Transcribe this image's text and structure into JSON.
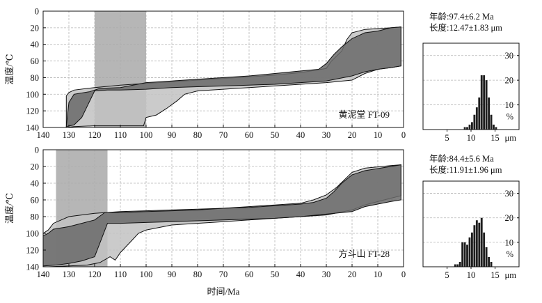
{
  "chart_data": [
    {
      "type": "area",
      "title": "",
      "label": "黄泥堂 FT-09",
      "xlabel": "",
      "ylabel": "温度/℃",
      "xlim": [
        140,
        0
      ],
      "ylim": [
        0,
        140
      ],
      "x_ticks": [
        140,
        130,
        120,
        110,
        100,
        90,
        80,
        70,
        60,
        50,
        40,
        30,
        20,
        10,
        0
      ],
      "y_ticks": [
        0,
        20,
        40,
        60,
        80,
        100,
        120,
        140
      ],
      "grid": true,
      "constraint_box": {
        "x": [
          120,
          100
        ],
        "y": [
          0,
          140
        ]
      },
      "acceptable_fit": {
        "upper": [
          [
            131,
            102
          ],
          [
            130,
            98
          ],
          [
            128,
            95
          ],
          [
            120,
            92
          ],
          [
            110,
            89
          ],
          [
            100,
            87
          ],
          [
            90,
            85
          ],
          [
            80,
            83
          ],
          [
            70,
            81
          ],
          [
            60,
            79
          ],
          [
            50,
            77
          ],
          [
            40,
            74
          ],
          [
            30,
            69
          ],
          [
            28,
            60
          ],
          [
            24,
            48
          ],
          [
            22,
            34
          ],
          [
            20,
            26
          ],
          [
            15,
            22
          ],
          [
            5,
            20
          ],
          [
            1,
            19
          ]
        ],
        "lower": [
          [
            1,
            66
          ],
          [
            5,
            68
          ],
          [
            10,
            70
          ],
          [
            15,
            75
          ],
          [
            20,
            83
          ],
          [
            30,
            86
          ],
          [
            40,
            88
          ],
          [
            50,
            90
          ],
          [
            60,
            92
          ],
          [
            70,
            94
          ],
          [
            80,
            96
          ],
          [
            85,
            100
          ],
          [
            88,
            108
          ],
          [
            92,
            117
          ],
          [
            96,
            125
          ],
          [
            100,
            128
          ],
          [
            101,
            138
          ],
          [
            110,
            138
          ],
          [
            120,
            138
          ],
          [
            128,
            139
          ],
          [
            131,
            140
          ]
        ]
      },
      "good_fit": {
        "upper": [
          [
            130,
            110
          ],
          [
            128,
            100
          ],
          [
            122,
            97
          ],
          [
            118,
            93
          ],
          [
            110,
            92
          ],
          [
            100,
            86
          ],
          [
            90,
            84
          ],
          [
            80,
            82
          ],
          [
            70,
            80
          ],
          [
            60,
            78
          ],
          [
            50,
            75
          ],
          [
            40,
            72
          ],
          [
            33,
            70
          ],
          [
            30,
            63
          ],
          [
            27,
            52
          ],
          [
            24,
            43
          ],
          [
            20,
            33
          ],
          [
            15,
            26
          ],
          [
            10,
            24
          ],
          [
            5,
            20
          ],
          [
            1,
            19
          ]
        ],
        "lower": [
          [
            1,
            66
          ],
          [
            5,
            68
          ],
          [
            10,
            70
          ],
          [
            15,
            73
          ],
          [
            20,
            78
          ],
          [
            30,
            84
          ],
          [
            40,
            86
          ],
          [
            50,
            88
          ],
          [
            60,
            89
          ],
          [
            70,
            90
          ],
          [
            80,
            91
          ],
          [
            90,
            92
          ],
          [
            100,
            94
          ],
          [
            110,
            95
          ],
          [
            115,
            95
          ],
          [
            120,
            96
          ],
          [
            125,
            128
          ],
          [
            128,
            137
          ],
          [
            131,
            139
          ]
        ]
      },
      "length_histogram": {
        "type": "bar",
        "age_text": "年龄:97.4±6.2 Ma",
        "length_text": "长度:12.47±1.83 μm",
        "x_ticks": [
          5,
          10,
          15
        ],
        "x_unit": "μm",
        "y_ticks": [
          10,
          20,
          30
        ],
        "y_unit": "%",
        "bin_width": 0.5,
        "bins": [
          [
            8.5,
            1
          ],
          [
            9,
            1
          ],
          [
            9.5,
            2
          ],
          [
            10,
            3
          ],
          [
            10.5,
            6
          ],
          [
            11,
            9
          ],
          [
            11.5,
            13
          ],
          [
            12,
            22
          ],
          [
            12.5,
            22
          ],
          [
            13,
            20
          ],
          [
            13.5,
            13
          ],
          [
            14,
            6
          ],
          [
            14.5,
            2
          ],
          [
            15,
            1
          ]
        ]
      }
    },
    {
      "type": "area",
      "title": "",
      "label": "方斗山  FT-28",
      "xlabel": "时间/Ma",
      "ylabel": "温度/℃",
      "xlim": [
        140,
        0
      ],
      "ylim": [
        0,
        140
      ],
      "x_ticks": [
        140,
        130,
        120,
        110,
        100,
        90,
        80,
        70,
        60,
        50,
        40,
        30,
        20,
        10,
        0
      ],
      "y_ticks": [
        0,
        20,
        40,
        60,
        80,
        100,
        120,
        140
      ],
      "grid": true,
      "constraint_box": {
        "x": [
          135,
          115
        ],
        "y": [
          0,
          140
        ]
      },
      "acceptable_fit": {
        "upper": [
          [
            140,
            100
          ],
          [
            138,
            96
          ],
          [
            136,
            88
          ],
          [
            130,
            80
          ],
          [
            120,
            76
          ],
          [
            110,
            74
          ],
          [
            100,
            73
          ],
          [
            90,
            72
          ],
          [
            80,
            71
          ],
          [
            70,
            70
          ],
          [
            60,
            68
          ],
          [
            50,
            66
          ],
          [
            40,
            64
          ],
          [
            35,
            60
          ],
          [
            30,
            54
          ],
          [
            26,
            45
          ],
          [
            23,
            36
          ],
          [
            20,
            27
          ],
          [
            15,
            22
          ],
          [
            5,
            19
          ],
          [
            1,
            18
          ]
        ],
        "lower": [
          [
            1,
            55
          ],
          [
            5,
            58
          ],
          [
            10,
            62
          ],
          [
            15,
            66
          ],
          [
            20,
            72
          ],
          [
            30,
            78
          ],
          [
            40,
            80
          ],
          [
            50,
            82
          ],
          [
            60,
            84
          ],
          [
            70,
            86
          ],
          [
            80,
            88
          ],
          [
            90,
            90
          ],
          [
            100,
            96
          ],
          [
            103,
            100
          ],
          [
            106,
            110
          ],
          [
            110,
            123
          ],
          [
            112,
            132
          ],
          [
            114,
            128
          ],
          [
            118,
            135
          ],
          [
            123,
            138
          ],
          [
            130,
            139
          ],
          [
            138,
            140
          ],
          [
            140,
            140
          ]
        ]
      },
      "good_fit": {
        "upper": [
          [
            140,
            103
          ],
          [
            138,
            100
          ],
          [
            136,
            95
          ],
          [
            130,
            92
          ],
          [
            125,
            88
          ],
          [
            120,
            84
          ],
          [
            116,
            75
          ],
          [
            110,
            75
          ],
          [
            100,
            74
          ],
          [
            90,
            73
          ],
          [
            80,
            72
          ],
          [
            70,
            70
          ],
          [
            60,
            69
          ],
          [
            50,
            67
          ],
          [
            40,
            65
          ],
          [
            35,
            63
          ],
          [
            30,
            58
          ],
          [
            27,
            50
          ],
          [
            24,
            40
          ],
          [
            20,
            30
          ],
          [
            15,
            25
          ],
          [
            5,
            20
          ],
          [
            1,
            18
          ]
        ],
        "lower": [
          [
            1,
            60
          ],
          [
            5,
            62
          ],
          [
            10,
            65
          ],
          [
            15,
            68
          ],
          [
            20,
            74
          ],
          [
            30,
            77
          ],
          [
            40,
            80
          ],
          [
            50,
            82
          ],
          [
            60,
            83
          ],
          [
            70,
            84
          ],
          [
            80,
            85
          ],
          [
            90,
            86
          ],
          [
            100,
            87
          ],
          [
            110,
            88
          ],
          [
            115,
            88
          ],
          [
            120,
            128
          ],
          [
            125,
            133
          ],
          [
            130,
            136
          ],
          [
            135,
            138
          ],
          [
            140,
            139
          ]
        ]
      },
      "length_histogram": {
        "type": "bar",
        "age_text": "年龄:84.4±5.6 Ma",
        "length_text": "长度:11.91±1.96 μm",
        "x_ticks": [
          5,
          10,
          15
        ],
        "x_unit": "μm",
        "y_ticks": [
          10,
          20,
          30
        ],
        "y_unit": "%",
        "bin_width": 0.5,
        "bins": [
          [
            6.5,
            1
          ],
          [
            7,
            1
          ],
          [
            7.5,
            2
          ],
          [
            8,
            10
          ],
          [
            8.5,
            10
          ],
          [
            9,
            9
          ],
          [
            9.5,
            12
          ],
          [
            10,
            14
          ],
          [
            10.5,
            17
          ],
          [
            11,
            19
          ],
          [
            11.5,
            18
          ],
          [
            12,
            20
          ],
          [
            12.5,
            14
          ],
          [
            13,
            8
          ],
          [
            13.5,
            4
          ],
          [
            14,
            2
          ]
        ]
      }
    }
  ],
  "colors": {
    "acceptable_fit": "#c2c2c2",
    "good_fit": "#6a6a6a",
    "constraint_box": "#a9a9a9",
    "grid": "#b5b5b5",
    "bars": "#1e1e1e"
  }
}
